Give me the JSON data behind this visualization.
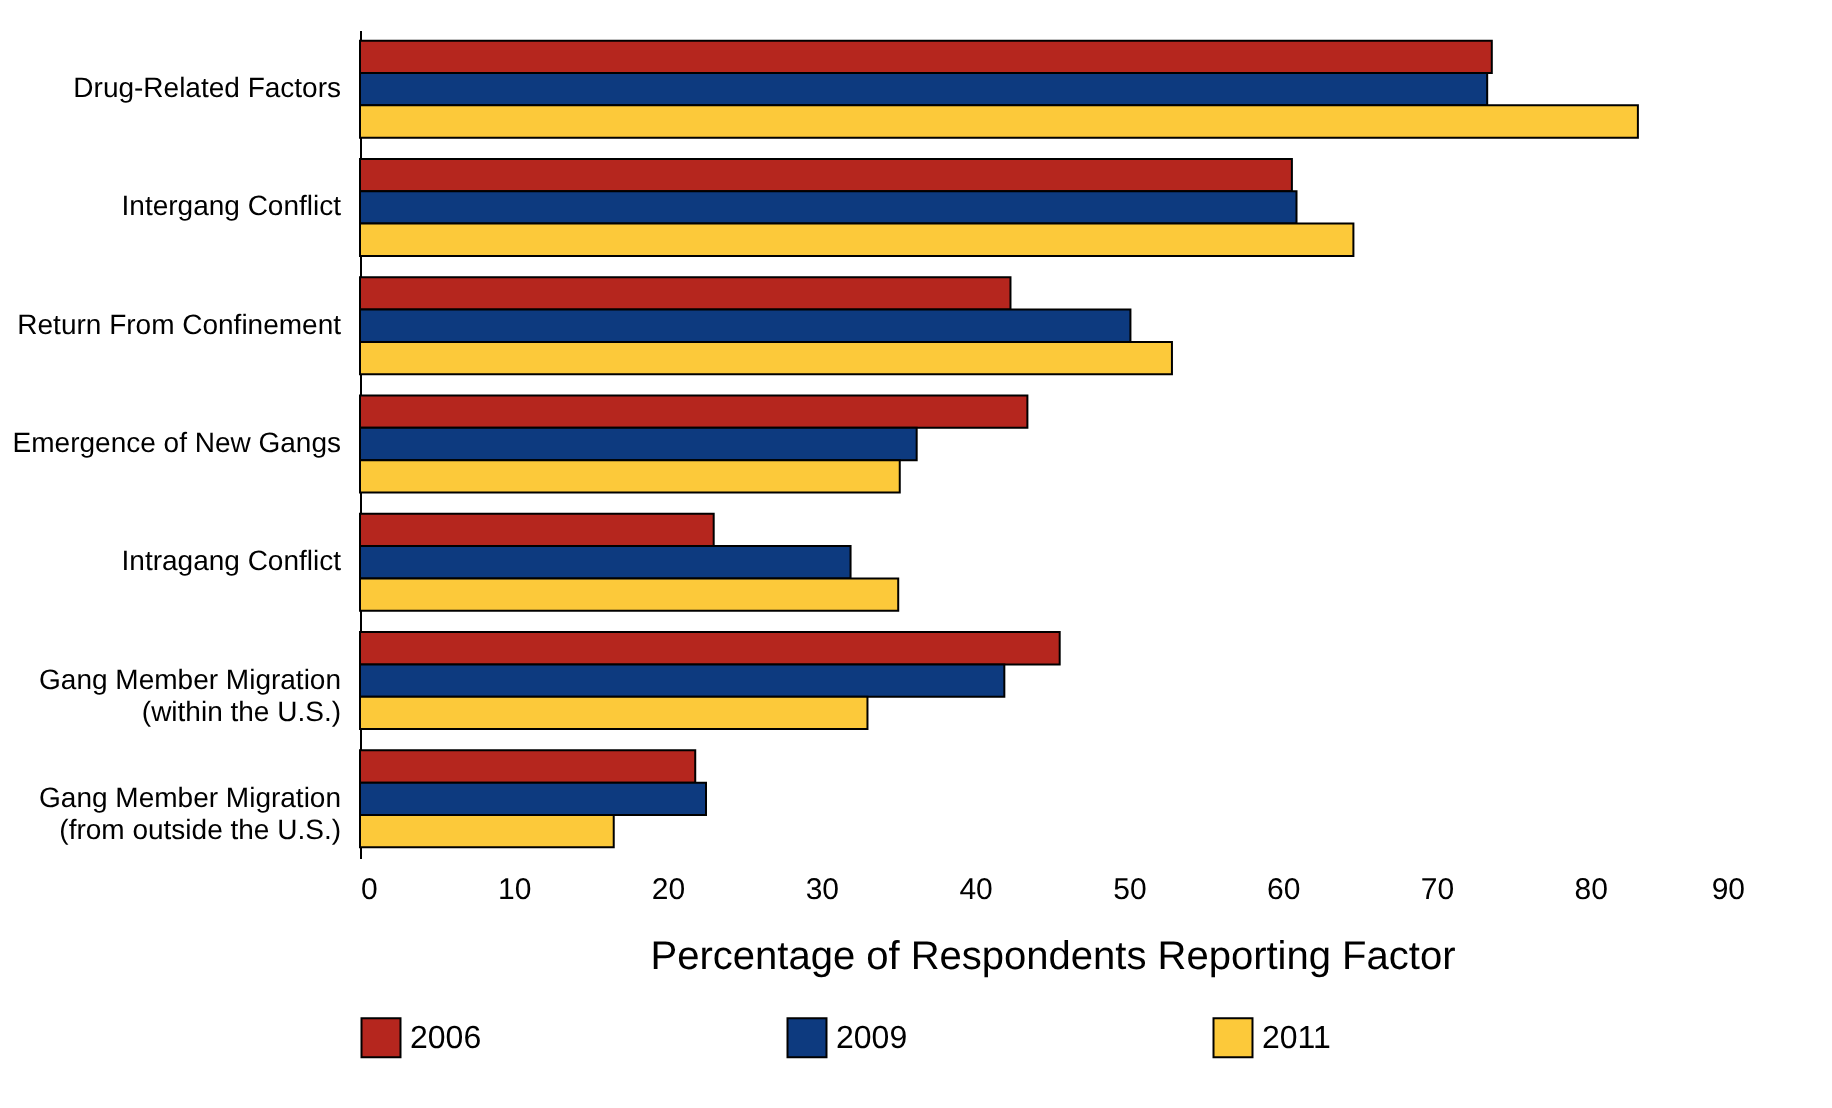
{
  "chart_data": {
    "type": "bar",
    "orientation": "horizontal",
    "xlabel": "Percentage of Respondents Reporting Factor",
    "categories": [
      "Drug-Related Factors",
      "Intergang Conflict",
      "Return From Confinement",
      "Emergence of New Gangs",
      "Intragang Conflict",
      "Gang Member Migration\n(within the U.S.)",
      "Gang Member Migration\n(from outside the U.S.)"
    ],
    "series": [
      {
        "name": "2006",
        "color": "#b5261e",
        "values": [
          73.6,
          60.6,
          42.3,
          43.4,
          23.0,
          45.5,
          21.8
        ]
      },
      {
        "name": "2009",
        "color": "#0d3a7f",
        "values": [
          73.3,
          60.9,
          50.1,
          36.2,
          31.9,
          41.9,
          22.5
        ]
      },
      {
        "name": "2011",
        "color": "#fcc93a",
        "values": [
          83.1,
          64.6,
          52.8,
          35.1,
          35.0,
          33.0,
          16.5
        ]
      }
    ],
    "xlim": [
      0,
      90
    ],
    "xticks": [
      0,
      10,
      20,
      30,
      40,
      50,
      60,
      70,
      80,
      90
    ],
    "grid": false,
    "legend": "bottom"
  }
}
